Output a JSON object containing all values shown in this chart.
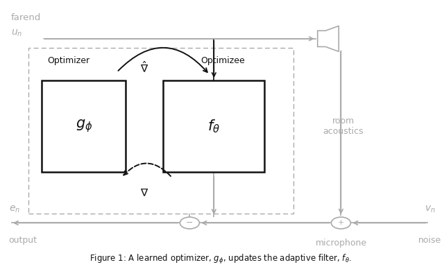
{
  "bg_color": "#ffffff",
  "dark_color": "#111111",
  "gray_color": "#aaaaaa",
  "farend_label": "farend",
  "un_label": "$u_n$",
  "optimizer_label": "Optimizer",
  "optimizee_label": "Optimizee",
  "room_label": "room\nacoustics",
  "en_label": "$e_n$",
  "output_label": "output",
  "vn_label": "$v_n$",
  "noise_label": "noise",
  "mic_label": "microphone",
  "g_text": "$g_\\phi$",
  "f_text": "$f_\\theta$",
  "nabla_hat": "$\\hat{\\nabla}$",
  "nabla": "$\\nabla$",
  "caption": "Figure 1: A learned optimizer, $g_\\phi$, updates the adaptive filter, $f_\\theta$."
}
